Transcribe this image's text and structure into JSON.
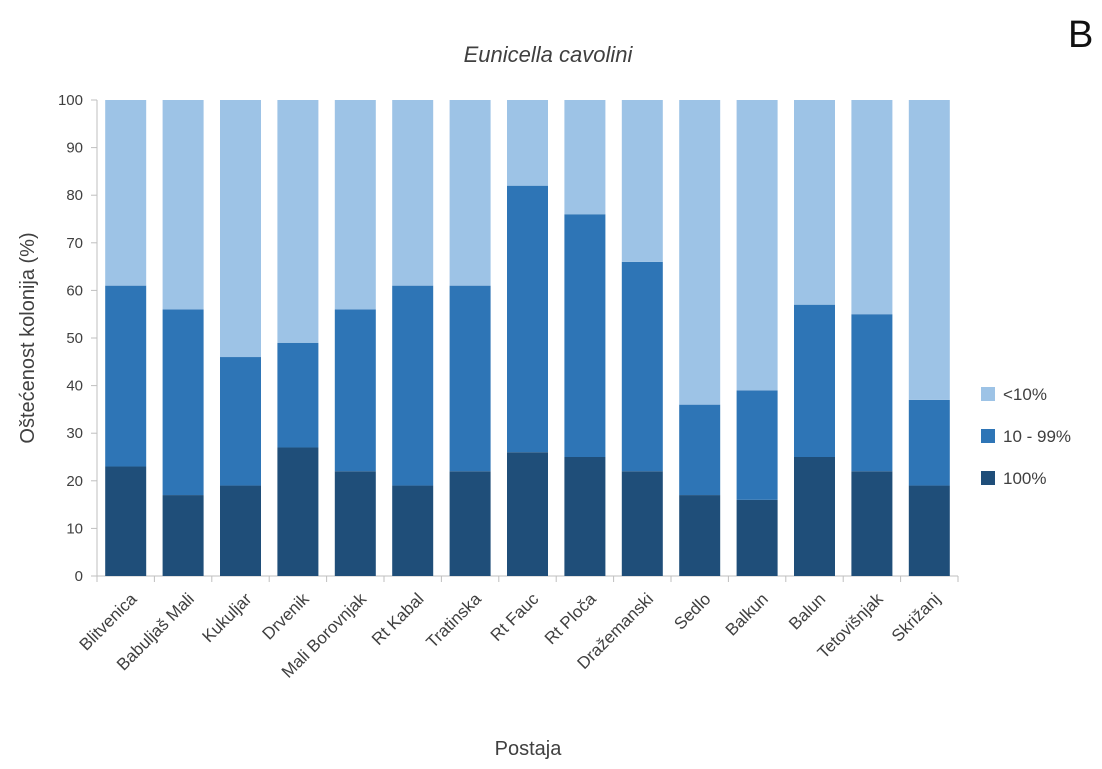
{
  "panel_label": "B",
  "chart_data": {
    "type": "bar",
    "stacked": true,
    "title": "Eunicella cavolini",
    "xlabel": "Postaja",
    "ylabel": "Oštećenost kolonija (%)",
    "ylim": [
      0,
      100
    ],
    "yticks": [
      0,
      10,
      20,
      30,
      40,
      50,
      60,
      70,
      80,
      90,
      100
    ],
    "grid": false,
    "legend_position": "right",
    "categories": [
      "Blitvenica",
      "Babuljaš Mali",
      "Kukuljar",
      "Drvenik",
      "Mali Borovnjak",
      "Rt Kabal",
      "Tratinska",
      "Rt Fauc",
      "Rt Ploča",
      "Dražemanski",
      "Sedlo",
      "Balkun",
      "Balun",
      "Tetovišnjak",
      "Skrižanj"
    ],
    "series": [
      {
        "name": "100%",
        "color": "#1f4e79",
        "values": [
          23,
          17,
          19,
          27,
          22,
          19,
          22,
          26,
          25,
          22,
          17,
          16,
          25,
          22,
          19
        ]
      },
      {
        "name": "10 - 99%",
        "color": "#2e75b6",
        "values": [
          38,
          39,
          27,
          22,
          34,
          42,
          39,
          56,
          51,
          44,
          19,
          23,
          32,
          33,
          18
        ]
      },
      {
        "name": "<10%",
        "color": "#9dc3e6",
        "values": [
          39,
          44,
          54,
          51,
          44,
          39,
          39,
          18,
          24,
          34,
          64,
          61,
          43,
          45,
          63
        ]
      }
    ],
    "legend_order": [
      "<10%",
      "10 - 99%",
      "100%"
    ]
  }
}
